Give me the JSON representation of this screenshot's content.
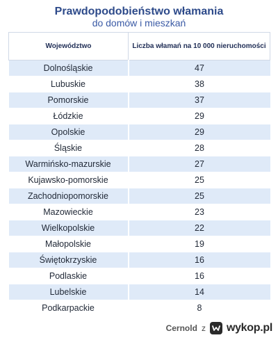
{
  "title": "Prawdopodobieństwo włamania",
  "subtitle": "do domów i mieszkań",
  "table": {
    "headers": [
      "Województwo",
      "Liczba włamań na 10 000 nieruchomości"
    ],
    "rows": [
      [
        "Dolnośląskie",
        "47"
      ],
      [
        "Lubuskie",
        "38"
      ],
      [
        "Pomorskie",
        "37"
      ],
      [
        "Łódzkie",
        "29"
      ],
      [
        "Opolskie",
        "29"
      ],
      [
        "Śląskie",
        "28"
      ],
      [
        "Warmińsko-mazurskie",
        "27"
      ],
      [
        "Kujawsko-pomorskie",
        "25"
      ],
      [
        "Zachodniopomorskie",
        "25"
      ],
      [
        "Mazowieckie",
        "23"
      ],
      [
        "Wielkopolskie",
        "22"
      ],
      [
        "Małopolskie",
        "19"
      ],
      [
        "Świętokrzyskie",
        "16"
      ],
      [
        "Podlaskie",
        "16"
      ],
      [
        "Lubelskie",
        "14"
      ],
      [
        "Podkarpackie",
        "8"
      ]
    ]
  },
  "footer": {
    "username": "Cernold",
    "separator": "z",
    "brand": "wykop.pl",
    "brand_icon": "wykop-logo-icon"
  },
  "colors": {
    "title": "#2d4a8a",
    "row_stripe": "#dfeaf8"
  }
}
